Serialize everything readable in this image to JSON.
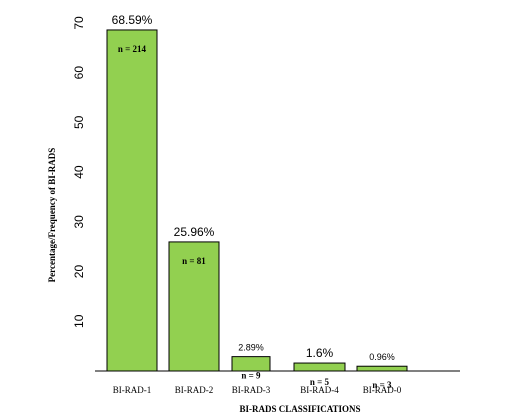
{
  "chart_data": {
    "type": "bar",
    "categories": [
      "BI-RAD-1",
      "BI-RAD-2",
      "BI-RAD-3",
      "BI-RAD-4",
      "BI-RAD-0"
    ],
    "values": [
      68.59,
      25.96,
      2.89,
      1.6,
      0.96
    ],
    "percent_labels": [
      "68.59%",
      "25.96%",
      "2.89%",
      "1.6%",
      "0.96%"
    ],
    "count_labels": [
      "n = 214",
      "n = 81",
      "n = 9",
      "n = 5",
      "n = 3"
    ],
    "ylabel": "Percentage/Frequency of BI-RADS",
    "xlabel": "BI-RADS CLASSIFICATIONS",
    "yticks": [
      10,
      20,
      30,
      40,
      50,
      60,
      70
    ],
    "ylim": [
      0,
      72
    ],
    "grid": false,
    "bar_color": "#92d050",
    "bar_edge_color": "#000000"
  }
}
